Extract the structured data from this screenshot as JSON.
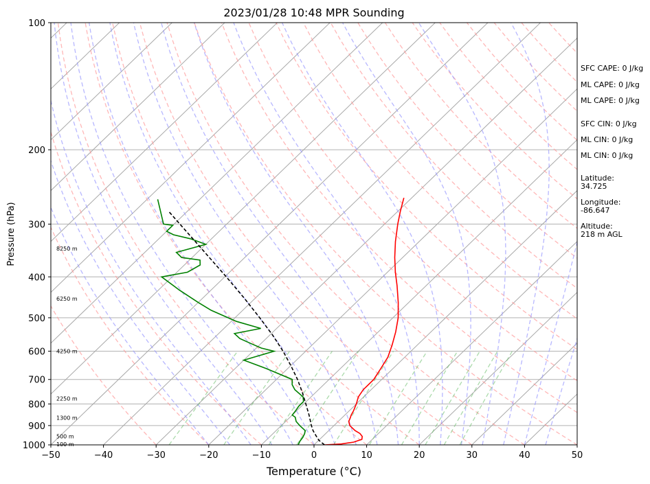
{
  "chart_data": {
    "type": "line",
    "title": "2023/01/28 10:48 MPR Sounding",
    "xlabel": "Temperature (°C)",
    "ylabel": "Pressure (hPa)",
    "xlim": [
      -50,
      50
    ],
    "ylim": [
      1000,
      100
    ],
    "yscale": "log",
    "x_ticks": [
      "−50",
      "−40",
      "−30",
      "−20",
      "−10",
      "0",
      "10",
      "20",
      "30",
      "40",
      "50"
    ],
    "y_ticks": [
      "100",
      "200",
      "300",
      "400",
      "500",
      "600",
      "700",
      "800",
      "900",
      "1000"
    ],
    "grid": "horizontal isobars",
    "series": [
      {
        "color": "#ff0000",
        "pressure": [
          1000,
          995,
          985,
          970,
          955,
          940,
          925,
          900,
          880,
          860,
          850,
          830,
          800,
          770,
          740,
          700,
          660,
          620,
          580,
          540,
          500,
          460,
          420,
          390,
          360,
          330,
          300,
          280,
          260
        ],
        "temperature": [
          2.0,
          5.0,
          7.0,
          8.0,
          7.5,
          6.5,
          5.0,
          3.0,
          2.0,
          1.5,
          1.2,
          0.8,
          0.0,
          -1.0,
          -1.5,
          -1.5,
          -2.3,
          -3.2,
          -4.8,
          -6.7,
          -9.0,
          -12.0,
          -15.5,
          -18.5,
          -21.5,
          -24.5,
          -27.5,
          -29.5,
          -31.5
        ]
      },
      {
        "color": "#008000",
        "pressure": [
          1000,
          980,
          960,
          940,
          925,
          900,
          880,
          860,
          850,
          830,
          810,
          790,
          770,
          740,
          720,
          700,
          660,
          630,
          600,
          590,
          575,
          560,
          545,
          530,
          510,
          480,
          460,
          430,
          400,
          390,
          375,
          365,
          360,
          350,
          335,
          325,
          318,
          312,
          302,
          300,
          262
        ],
        "temperature": [
          -3.0,
          -3.4,
          -3.6,
          -4.0,
          -4.5,
          -6.5,
          -8.0,
          -9.0,
          -10.0,
          -10.2,
          -10.5,
          -10.5,
          -11.5,
          -14.5,
          -16.0,
          -17.0,
          -24.0,
          -30.0,
          -26.0,
          -29.0,
          -32.0,
          -35.0,
          -37.0,
          -33.0,
          -39.0,
          -46.0,
          -50.0,
          -56.0,
          -62.0,
          -58.0,
          -57.0,
          -58.0,
          -62.0,
          -64.0,
          -60.0,
          -64.0,
          -68.0,
          -70.0,
          -70.0,
          -72.0,
          -78.0
        ]
      },
      {
        "color": "#000000",
        "pressure": [
          1000,
          975,
          950,
          925,
          900,
          850,
          800,
          750,
          700,
          650,
          600,
          550,
          500,
          450,
          400,
          350,
          300,
          280
        ],
        "temperature": [
          2.0,
          0.0,
          -1.5,
          -3.0,
          -4.3,
          -6.8,
          -9.6,
          -12.6,
          -16.0,
          -19.9,
          -24.3,
          -29.4,
          -35.3,
          -42.0,
          -49.7,
          -58.6,
          -68.9,
          -73.5
        ]
      }
    ],
    "height_labels": [
      {
        "pressure": 1000,
        "text": "100 m"
      },
      {
        "pressure": 958,
        "text": "500 m"
      },
      {
        "pressure": 865,
        "text": "1300 m"
      },
      {
        "pressure": 780,
        "text": "2250 m"
      },
      {
        "pressure": 602,
        "text": "4250 m"
      },
      {
        "pressure": 452,
        "text": "6250 m"
      },
      {
        "pressure": 344,
        "text": "8250 m"
      }
    ]
  },
  "sidebar": {
    "sfc_cape": "SFC CAPE: 0 J/kg",
    "ml_cape_1": "ML CAPE: 0 J/kg",
    "ml_cape_2": "ML CAPE: 0 J/kg",
    "sfc_cin": "SFC CIN: 0 J/kg",
    "ml_cin_1": "ML CIN: 0 J/kg",
    "ml_cin_2": "ML CIN: 0 J/kg",
    "latitude": "Latitude:\n34.725",
    "longitude": "Longitude:\n-86.647",
    "altitude": "Altitude:\n218 m AGL"
  }
}
